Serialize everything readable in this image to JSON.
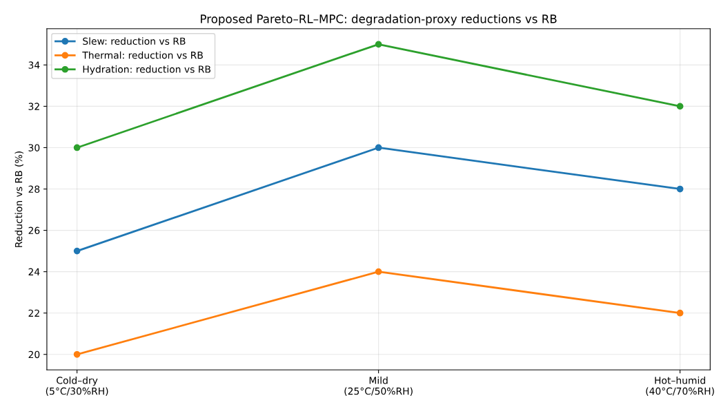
{
  "chart_data": {
    "type": "line",
    "title": "Proposed Pareto–RL–MPC: degradation-proxy reductions vs RB",
    "ylabel": "Reduction vs RB (%)",
    "categories": [
      "Cold–dry\n(5°C/30%RH)",
      "Mild\n(25°C/50%RH)",
      "Hot–humid\n(40°C/70%RH)"
    ],
    "series": [
      {
        "name": "Slew: reduction vs RB",
        "color": "#1f77b4",
        "values": [
          25,
          30,
          28
        ]
      },
      {
        "name": "Thermal: reduction vs RB",
        "color": "#ff7f0e",
        "values": [
          20,
          24,
          22
        ]
      },
      {
        "name": "Hydration: reduction vs RB",
        "color": "#2ca02c",
        "values": [
          30,
          35,
          32
        ]
      }
    ],
    "ylim": [
      19.25,
      35.75
    ],
    "yticks": [
      20,
      22,
      24,
      26,
      28,
      30,
      32,
      34
    ],
    "grid": true,
    "legend": "top left",
    "marker": "circle",
    "line_style": "solid"
  }
}
